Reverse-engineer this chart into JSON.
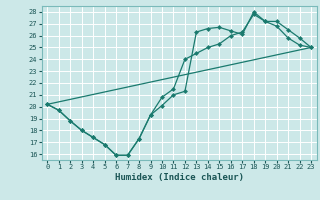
{
  "xlabel": "Humidex (Indice chaleur)",
  "bg_color": "#cce8e8",
  "grid_color": "#ffffff",
  "line_color": "#1a7a6e",
  "xlim": [
    -0.5,
    23.5
  ],
  "ylim": [
    15.5,
    28.5
  ],
  "xticks": [
    0,
    1,
    2,
    3,
    4,
    5,
    6,
    7,
    8,
    9,
    10,
    11,
    12,
    13,
    14,
    15,
    16,
    17,
    18,
    19,
    20,
    21,
    22,
    23
  ],
  "yticks": [
    16,
    17,
    18,
    19,
    20,
    21,
    22,
    23,
    24,
    25,
    26,
    27,
    28
  ],
  "line1_x": [
    0,
    1,
    2,
    3,
    4,
    5,
    6,
    7,
    8,
    9,
    10,
    11,
    12,
    13,
    14,
    15,
    16,
    17,
    18,
    19,
    20,
    21,
    22,
    23
  ],
  "line1_y": [
    20.2,
    19.7,
    18.8,
    18.0,
    17.4,
    16.8,
    15.9,
    15.9,
    17.3,
    19.3,
    20.1,
    21.0,
    21.3,
    26.3,
    26.6,
    26.7,
    26.4,
    26.1,
    28.0,
    27.2,
    26.8,
    25.8,
    25.2,
    25.0
  ],
  "line2_x": [
    0,
    1,
    2,
    3,
    4,
    5,
    6,
    7,
    8,
    9,
    10,
    11,
    12,
    13,
    14,
    15,
    16,
    17,
    18,
    19,
    20,
    21,
    22,
    23
  ],
  "line2_y": [
    20.2,
    19.7,
    18.8,
    18.0,
    17.4,
    16.8,
    15.9,
    15.9,
    17.3,
    19.3,
    20.8,
    21.5,
    24.0,
    24.5,
    25.0,
    25.3,
    26.0,
    26.3,
    27.8,
    27.2,
    27.2,
    26.5,
    25.8,
    25.0
  ],
  "line3_x": [
    0,
    23
  ],
  "line3_y": [
    20.2,
    25.0
  ]
}
